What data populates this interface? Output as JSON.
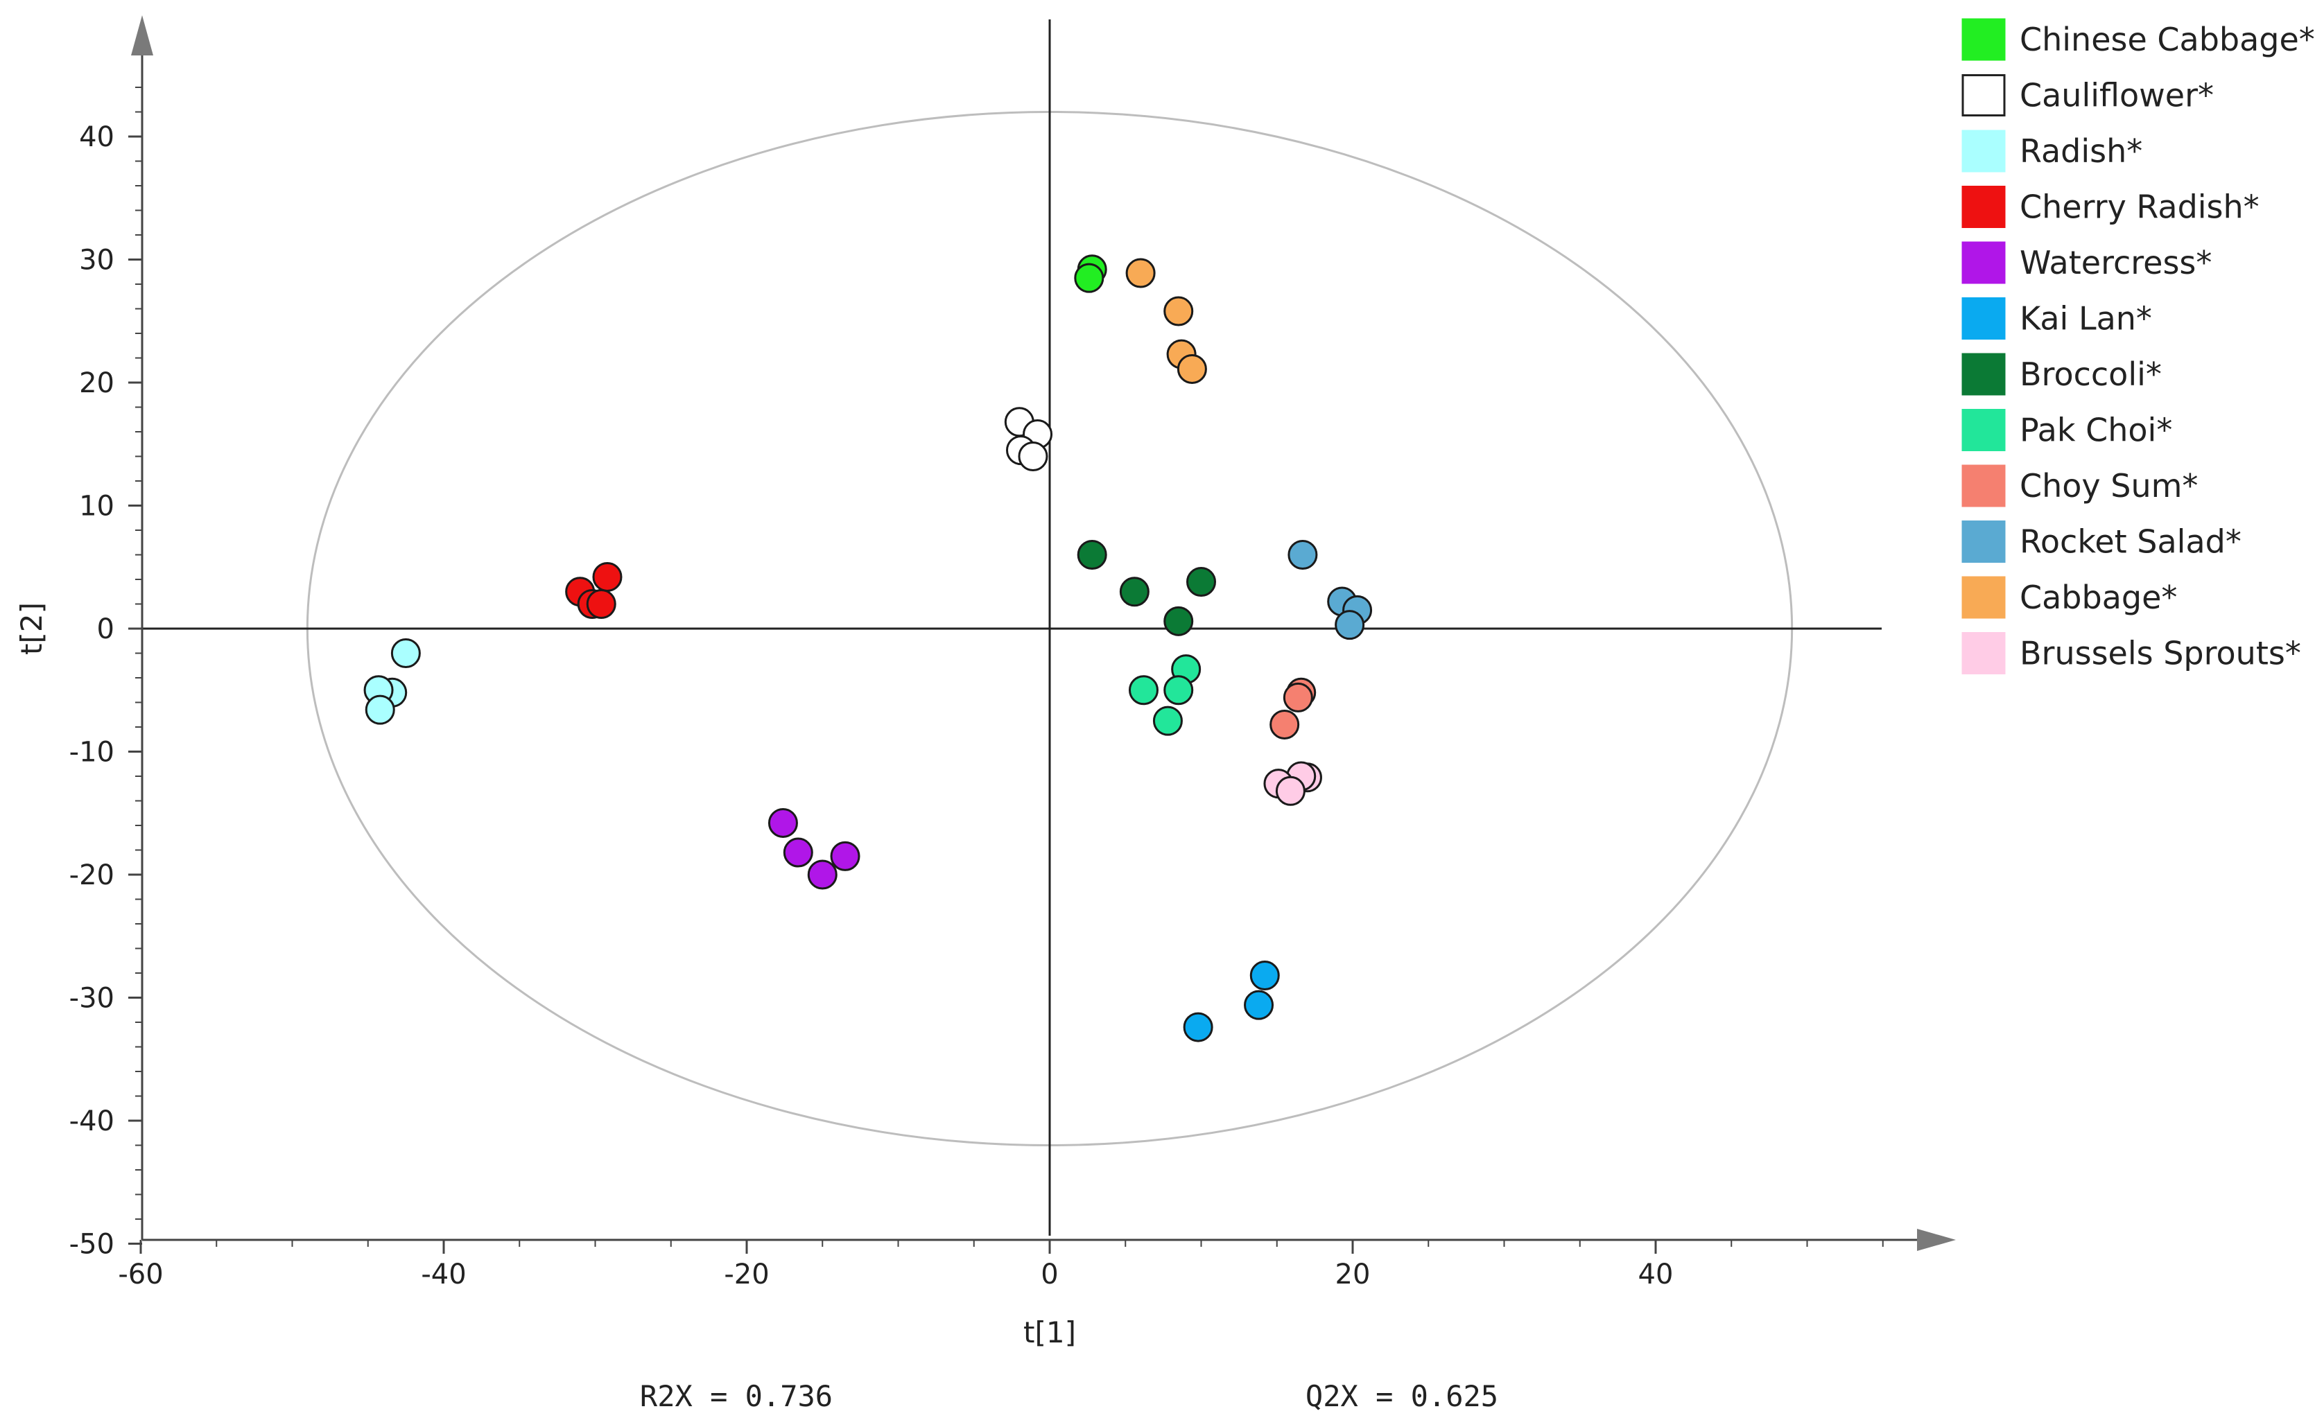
{
  "chart_data": {
    "type": "scatter",
    "title": "",
    "xlabel": "t[1]",
    "ylabel": "t[2]",
    "xlim": [
      -60,
      55
    ],
    "ylim": [
      -50,
      45
    ],
    "xticks": [
      "-60",
      "-40",
      "-20",
      "0",
      "20",
      "40"
    ],
    "yticks": [
      "40",
      "30",
      "20",
      "10",
      "0",
      "-10",
      "-20",
      "-30",
      "-40",
      "-50"
    ],
    "ellipse": {
      "rx": 49,
      "ry": 42
    },
    "annotations": {
      "r2x": "R2X = 0.736",
      "q2x": "Q2X = 0.625"
    },
    "legend_position": "right",
    "series": [
      {
        "name": "Chinese Cabbage*",
        "color": "#22ee22",
        "points": [
          [
            2.8,
            29.2
          ],
          [
            2.6,
            28.5
          ]
        ]
      },
      {
        "name": "Cauliflower*",
        "color": "#ffffff",
        "points": [
          [
            -2.0,
            16.8
          ],
          [
            -0.8,
            15.8
          ],
          [
            -1.9,
            14.5
          ],
          [
            -1.1,
            14.0
          ]
        ]
      },
      {
        "name": "Radish*",
        "color": "#aaffff",
        "points": [
          [
            -42.5,
            -2.0
          ],
          [
            -43.4,
            -5.2
          ],
          [
            -44.3,
            -5.0
          ],
          [
            -44.2,
            -6.6
          ]
        ]
      },
      {
        "name": "Cherry Radish*",
        "color": "#ee1111",
        "points": [
          [
            -31.0,
            3.0
          ],
          [
            -29.2,
            4.2
          ],
          [
            -30.2,
            2.0
          ],
          [
            -29.6,
            2.0
          ]
        ]
      },
      {
        "name": "Watercress*",
        "color": "#b016e8",
        "points": [
          [
            -17.6,
            -15.8
          ],
          [
            -16.6,
            -18.2
          ],
          [
            -13.5,
            -18.5
          ],
          [
            -15.0,
            -20.0
          ]
        ]
      },
      {
        "name": "Kai Lan*",
        "color": "#0aaaf0",
        "points": [
          [
            14.2,
            -28.2
          ],
          [
            13.8,
            -30.6
          ],
          [
            9.8,
            -32.4
          ]
        ]
      },
      {
        "name": "Broccoli*",
        "color": "#0b7a35",
        "points": [
          [
            2.8,
            6.0
          ],
          [
            5.6,
            3.0
          ],
          [
            10.0,
            3.8
          ],
          [
            8.5,
            0.6
          ]
        ]
      },
      {
        "name": "Pak Choi*",
        "color": "#22e69a",
        "points": [
          [
            9.0,
            -3.3
          ],
          [
            6.2,
            -5.0
          ],
          [
            8.5,
            -5.0
          ],
          [
            7.8,
            -7.5
          ]
        ]
      },
      {
        "name": "Choy Sum*",
        "color": "#f58070",
        "points": [
          [
            16.6,
            -5.2
          ],
          [
            16.4,
            -5.6
          ],
          [
            15.5,
            -7.8
          ]
        ]
      },
      {
        "name": "Rocket Salad*",
        "color": "#5aaad2",
        "points": [
          [
            16.7,
            6.0
          ],
          [
            19.3,
            2.2
          ],
          [
            20.3,
            1.5
          ],
          [
            19.8,
            0.3
          ]
        ]
      },
      {
        "name": "Cabbage*",
        "color": "#f8aa55",
        "points": [
          [
            6.0,
            28.9
          ],
          [
            8.5,
            25.8
          ],
          [
            8.7,
            22.3
          ],
          [
            9.4,
            21.1
          ]
        ]
      },
      {
        "name": "Brussels Sprouts*",
        "color": "#ffcce6",
        "points": [
          [
            17.0,
            -12.1
          ],
          [
            16.6,
            -12.0
          ],
          [
            15.1,
            -12.6
          ],
          [
            15.9,
            -13.2
          ]
        ]
      }
    ]
  }
}
